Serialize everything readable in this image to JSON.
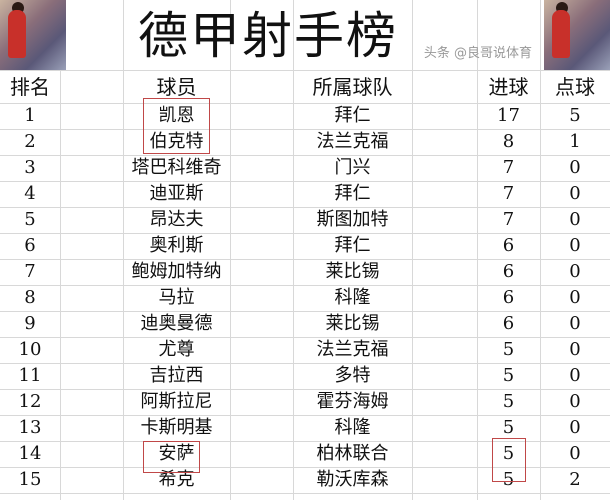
{
  "title": "德甲射手榜",
  "headers": {
    "rank": "排名",
    "player": "球员",
    "team": "所属球队",
    "goals": "进球",
    "penalties": "点球"
  },
  "rows": [
    {
      "rank": "1",
      "player": "凯恩",
      "team": "拜仁",
      "goals": "17",
      "penalties": "5"
    },
    {
      "rank": "2",
      "player": "伯克特",
      "team": "法兰克福",
      "goals": "8",
      "penalties": "1"
    },
    {
      "rank": "3",
      "player": "塔巴科维奇",
      "team": "门兴",
      "goals": "7",
      "penalties": "0"
    },
    {
      "rank": "4",
      "player": "迪亚斯",
      "team": "拜仁",
      "goals": "7",
      "penalties": "0"
    },
    {
      "rank": "5",
      "player": "昂达夫",
      "team": "斯图加特",
      "goals": "7",
      "penalties": "0"
    },
    {
      "rank": "6",
      "player": "奥利斯",
      "team": "拜仁",
      "goals": "6",
      "penalties": "0"
    },
    {
      "rank": "7",
      "player": "鲍姆加特纳",
      "team": "莱比锡",
      "goals": "6",
      "penalties": "0"
    },
    {
      "rank": "8",
      "player": "马拉",
      "team": "科隆",
      "goals": "6",
      "penalties": "0"
    },
    {
      "rank": "9",
      "player": "迪奥曼德",
      "team": "莱比锡",
      "goals": "6",
      "penalties": "0"
    },
    {
      "rank": "10",
      "player": "尤尊",
      "team": "法兰克福",
      "goals": "5",
      "penalties": "0"
    },
    {
      "rank": "11",
      "player": "吉拉西",
      "team": "多特",
      "goals": "5",
      "penalties": "0"
    },
    {
      "rank": "12",
      "player": "阿斯拉尼",
      "team": "霍芬海姆",
      "goals": "5",
      "penalties": "0"
    },
    {
      "rank": "13",
      "player": "卡斯明基",
      "team": "科隆",
      "goals": "5",
      "penalties": "0"
    },
    {
      "rank": "14",
      "player": "安萨",
      "team": "柏林联合",
      "goals": "5",
      "penalties": "0"
    },
    {
      "rank": "15",
      "player": "希克",
      "team": "勒沃库森",
      "goals": "5",
      "penalties": "2"
    }
  ],
  "watermark": "头条 @良哥说体育",
  "highlight_color": "#c04848"
}
